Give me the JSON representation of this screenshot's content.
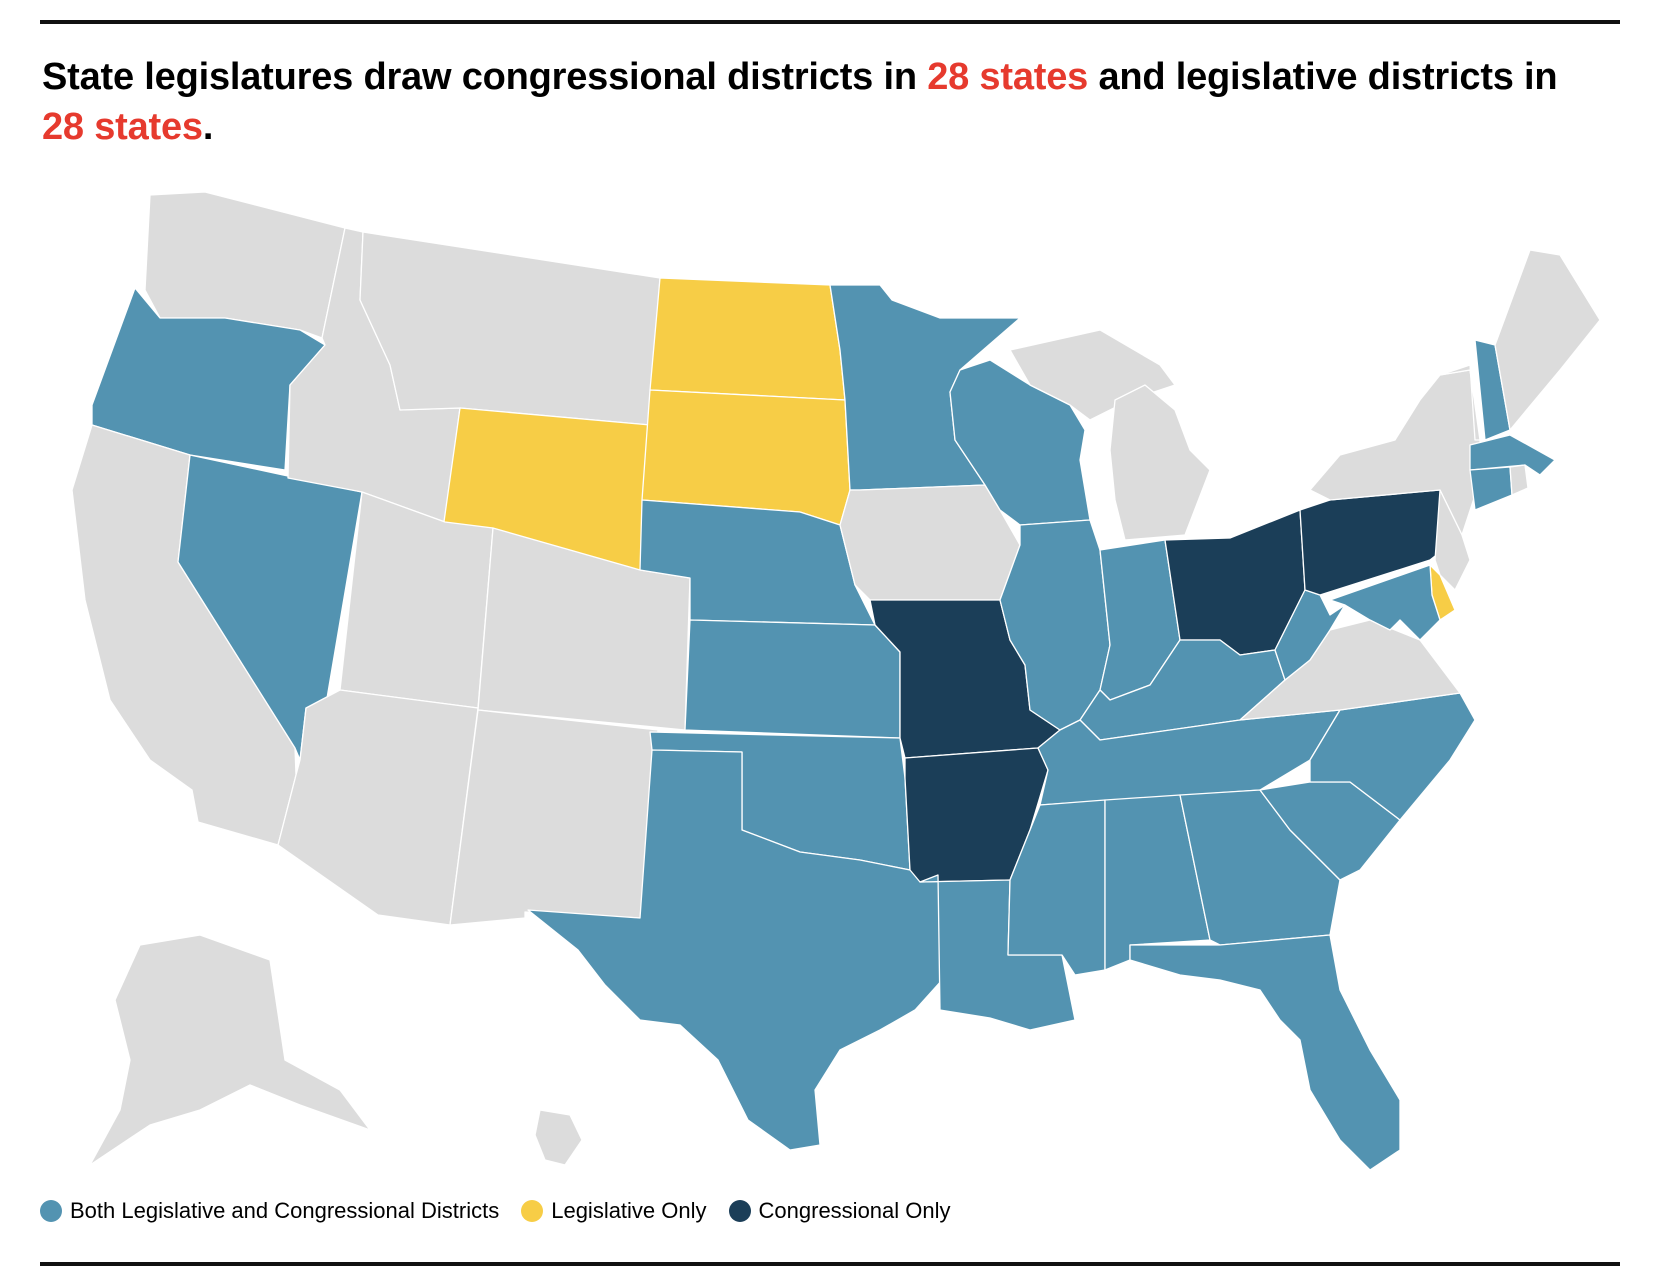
{
  "title": {
    "part1": "State legislatures draw congressional districts in",
    "highlight1": "28 states",
    "part2": "and legislative districts in",
    "highlight2": "28 states",
    "part3": "."
  },
  "colors": {
    "both": "#5393b1",
    "legislative_only": "#f7cd46",
    "congressional_only": "#1b3e58",
    "none": "#dcdcdc",
    "highlight": "#e63a2e"
  },
  "legend": [
    {
      "key": "both",
      "label": "Both Legislative and Congressional Districts"
    },
    {
      "key": "legislative_only",
      "label": "Legislative Only"
    },
    {
      "key": "congressional_only",
      "label": "Congressional Only"
    }
  ],
  "states": {
    "WA": "none",
    "OR": "both",
    "CA": "none",
    "NV": "both",
    "ID": "none",
    "MT": "none",
    "WY": "legislative_only",
    "UT": "none",
    "AZ": "none",
    "CO": "none",
    "NM": "none",
    "ND": "legislative_only",
    "SD": "legislative_only",
    "NE": "both",
    "KS": "both",
    "OK": "both",
    "TX": "both",
    "MN": "both",
    "IA": "none",
    "MO": "congressional_only",
    "AR": "congressional_only",
    "LA": "both",
    "WI": "both",
    "IL": "both",
    "MI": "none",
    "IN": "both",
    "OH": "congressional_only",
    "KY": "both",
    "TN": "both",
    "MS": "both",
    "AL": "both",
    "GA": "both",
    "FL": "both",
    "SC": "both",
    "NC": "both",
    "VA": "none",
    "WV": "both",
    "PA": "congressional_only",
    "NY": "none",
    "VT": "none",
    "NH": "both",
    "ME": "none",
    "MA": "both",
    "RI": "none",
    "CT": "both",
    "NJ": "none",
    "DE": "legislative_only",
    "MD": "both",
    "AK": "none",
    "HI": "none"
  }
}
